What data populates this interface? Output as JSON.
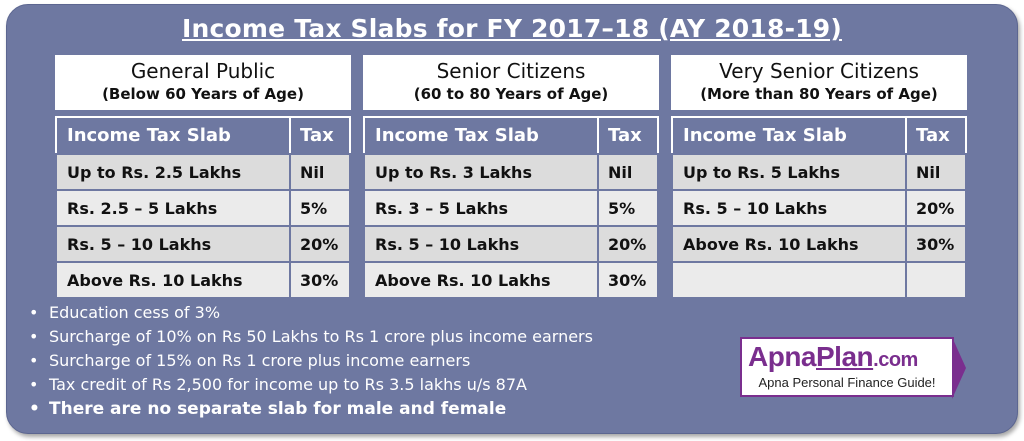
{
  "title": "Income Tax Slabs for FY 2017–18 (AY 2018-19)",
  "panels": [
    {
      "heading": "General Public",
      "subheading": "(Below 60 Years of Age)",
      "col_slab": "Income Tax Slab",
      "col_tax": "Tax",
      "rows": [
        {
          "slab": "Up to Rs. 2.5 Lakhs",
          "tax": "Nil"
        },
        {
          "slab": "Rs. 2.5 – 5 Lakhs",
          "tax": "5%"
        },
        {
          "slab": "Rs. 5 – 10 Lakhs",
          "tax": "20%"
        },
        {
          "slab": "Above Rs. 10 Lakhs",
          "tax": "30%"
        }
      ]
    },
    {
      "heading": "Senior Citizens",
      "subheading": "(60 to 80 Years of Age)",
      "col_slab": "Income Tax Slab",
      "col_tax": "Tax",
      "rows": [
        {
          "slab": "Up to Rs. 3 Lakhs",
          "tax": "Nil"
        },
        {
          "slab": "Rs. 3 – 5 Lakhs",
          "tax": "5%"
        },
        {
          "slab": "Rs. 5 – 10 Lakhs",
          "tax": "20%"
        },
        {
          "slab": "Above Rs. 10 Lakhs",
          "tax": "30%"
        }
      ]
    },
    {
      "heading": "Very Senior Citizens",
      "subheading": "(More than 80 Years of Age)",
      "col_slab": "Income Tax Slab",
      "col_tax": "Tax",
      "rows": [
        {
          "slab": "Up to Rs. 5 Lakhs",
          "tax": "Nil"
        },
        {
          "slab": "Rs. 5 – 10 Lakhs",
          "tax": "20%"
        },
        {
          "slab": "Above Rs. 10 Lakhs",
          "tax": "30%"
        },
        {
          "slab": "",
          "tax": ""
        }
      ]
    }
  ],
  "notes": [
    "Education cess of 3%",
    "Surcharge of 10% on Rs 50 Lakhs to Rs 1 crore plus income earners",
    "Surcharge of 15% on Rs 1 crore plus income earners",
    "Tax credit of Rs 2,500 for income up to Rs 3.5 lakhs u/s 87A",
    "There are no separate slab for male and female"
  ],
  "logo": {
    "apna": "Apna",
    "plan": "Plan",
    "com": ".com",
    "tagline": "Apna Personal Finance Guide!"
  },
  "colors": {
    "background": "#6e78a1",
    "cell_light": "#ebebeb",
    "cell_dark": "#dcdcdc",
    "brand": "#7a2e8e"
  }
}
